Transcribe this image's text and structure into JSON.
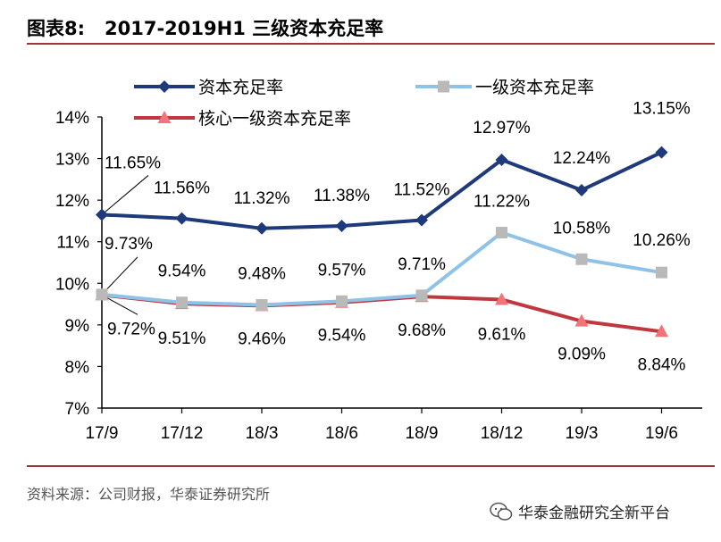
{
  "header": {
    "figure_no": "图表8:",
    "title": "2017-2019H1 三级资本充足率"
  },
  "source": "资料来源：公司财报，华泰证券研究所",
  "watermark": "华泰金融研究全新平台",
  "colors": {
    "rule": "#9e3434"
  },
  "chart_data": {
    "type": "line",
    "categories": [
      "17/9",
      "17/12",
      "18/3",
      "18/6",
      "18/9",
      "18/12",
      "19/3",
      "19/6"
    ],
    "ylim": [
      7,
      14
    ],
    "yticks": [
      "7%",
      "8%",
      "9%",
      "10%",
      "11%",
      "12%",
      "13%",
      "14%"
    ],
    "grid": false,
    "legend_position": "top",
    "series": [
      {
        "name": "资本充足率",
        "color": "#1f3a7a",
        "marker": "diamond",
        "values": [
          11.65,
          11.56,
          11.32,
          11.38,
          11.52,
          12.97,
          12.24,
          13.15
        ],
        "labels": [
          "11.65%",
          "11.56%",
          "11.32%",
          "11.38%",
          "11.52%",
          "12.97%",
          "12.24%",
          "13.15%"
        ]
      },
      {
        "name": "一级资本充足率",
        "color": "#8ec2e6",
        "marker": "square",
        "values": [
          9.73,
          9.54,
          9.48,
          9.57,
          9.71,
          11.22,
          10.58,
          10.26
        ],
        "labels": [
          "9.73%",
          "9.54%",
          "9.48%",
          "9.57%",
          "9.71%",
          "11.22%",
          "10.58%",
          "10.26%"
        ]
      },
      {
        "name": "核心一级资本充足率",
        "color": "#c0383f",
        "marker": "triangle",
        "values": [
          9.72,
          9.51,
          9.46,
          9.54,
          9.68,
          9.61,
          9.09,
          8.84
        ],
        "labels": [
          "9.72%",
          "9.51%",
          "9.46%",
          "9.54%",
          "9.68%",
          "9.61%",
          "9.09%",
          "8.84%"
        ]
      }
    ]
  }
}
